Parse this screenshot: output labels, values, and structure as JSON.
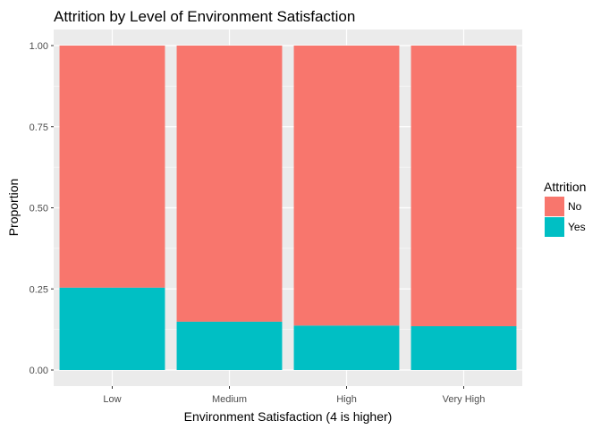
{
  "chart_data": {
    "type": "bar",
    "stacked": true,
    "title": "Attrition by Level of Environment Satisfaction",
    "xlabel": "Environment Satisfaction (4 is higher)",
    "ylabel": "Proportion",
    "categories": [
      "Low",
      "Medium",
      "High",
      "Very High"
    ],
    "ylim": [
      0,
      1
    ],
    "yticks": [
      "0.00",
      "0.25",
      "0.50",
      "0.75",
      "1.00"
    ],
    "ytick_values": [
      0,
      0.25,
      0.5,
      0.75,
      1.0
    ],
    "grid": true,
    "legend": {
      "title": "Attrition",
      "placement": "right"
    },
    "series": [
      {
        "name": "Yes",
        "color": "#00BFC4",
        "values": [
          0.254,
          0.149,
          0.137,
          0.135
        ]
      },
      {
        "name": "No",
        "color": "#F8766D",
        "values": [
          0.746,
          0.851,
          0.863,
          0.865
        ]
      }
    ],
    "legend_order": [
      "No",
      "Yes"
    ],
    "panel_background": "#EBEBEB",
    "grid_color": "#FFFFFF"
  }
}
